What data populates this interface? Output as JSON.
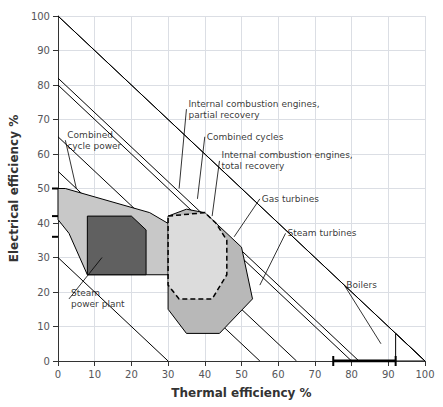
{
  "chart_data": {
    "type": "polygon",
    "xlabel": "Thermal efficiency %",
    "ylabel": "Electrical efficiency %",
    "xlim": [
      0,
      100
    ],
    "ylim": [
      0,
      100
    ],
    "xticks": [
      0,
      10,
      20,
      30,
      40,
      50,
      60,
      70,
      80,
      90,
      100
    ],
    "yticks": [
      0,
      10,
      20,
      30,
      40,
      50,
      60,
      70,
      80,
      90,
      100
    ],
    "grid": true,
    "lines": [
      {
        "points": [
          [
            0,
            100
          ],
          [
            100,
            0
          ]
        ]
      },
      {
        "points": [
          [
            30,
            0
          ],
          [
            0,
            30
          ]
        ]
      },
      {
        "points": [
          [
            55,
            0
          ],
          [
            0,
            55
          ]
        ]
      },
      {
        "points": [
          [
            65,
            0
          ],
          [
            0,
            65
          ]
        ]
      },
      {
        "points": [
          [
            80,
            0
          ],
          [
            0,
            80
          ]
        ]
      },
      {
        "points": [
          [
            82,
            0
          ],
          [
            0,
            82
          ]
        ]
      },
      {
        "points": [
          [
            100,
            0
          ],
          [
            0,
            100
          ]
        ]
      },
      {
        "points": [
          [
            75,
            0
          ],
          [
            92,
            0
          ]
        ],
        "line_style": "thick",
        "marker": "bar"
      }
    ],
    "shapes": [
      {
        "points": [
          [
            0,
            50
          ],
          [
            2,
            50
          ],
          [
            25,
            43
          ],
          [
            33,
            38
          ],
          [
            33,
            25
          ],
          [
            8,
            25
          ],
          [
            3,
            37
          ],
          [
            0,
            41
          ]
        ],
        "color": "#c8c8c8"
      },
      {
        "points": [
          [
            8,
            42
          ],
          [
            20,
            42
          ],
          [
            24,
            38
          ],
          [
            24,
            25
          ],
          [
            8,
            25
          ]
        ],
        "color": "#606060"
      },
      {
        "points": [
          [
            30,
            42
          ],
          [
            35,
            44
          ],
          [
            40,
            43
          ],
          [
            43,
            40
          ],
          [
            50,
            33
          ],
          [
            53,
            18
          ],
          [
            44,
            8
          ],
          [
            35,
            8
          ],
          [
            30,
            15
          ],
          [
            30,
            35
          ]
        ],
        "color": "#b8b8b8"
      },
      {
        "points": [
          [
            30,
            42
          ],
          [
            40,
            43
          ],
          [
            43,
            40
          ],
          [
            46,
            35
          ],
          [
            46,
            25
          ],
          [
            42,
            18
          ],
          [
            33,
            18
          ],
          [
            30,
            22
          ]
        ],
        "color": "#ffffff",
        "line_style": "dashed"
      },
      {
        "points": [
          [
            92,
            0
          ],
          [
            100,
            0
          ],
          [
            92,
            8
          ]
        ],
        "color": "none"
      }
    ],
    "annotations": [
      {
        "text": "Internal combustion engines,\npartial recovery",
        "xytext": [
          35,
          73
        ],
        "xy": [
          33,
          50
        ]
      },
      {
        "text": "Combined cycles",
        "xytext": [
          40,
          65
        ],
        "xy": [
          38,
          47
        ]
      },
      {
        "text": "Internal combustion engines,\ntotal recovery",
        "xytext": [
          44,
          58
        ],
        "xy": [
          42,
          42
        ]
      },
      {
        "text": "Gas turbines",
        "xytext": [
          55,
          47
        ],
        "xy": [
          48,
          36
        ]
      },
      {
        "text": "Steam turbines",
        "xytext": [
          62,
          37
        ],
        "xy": [
          55,
          22
        ]
      },
      {
        "text": "Boilers",
        "xytext": [
          78,
          22
        ],
        "xy": [
          88,
          5
        ]
      },
      {
        "text": "Combined\ncycle power",
        "xytext": [
          2,
          64
        ],
        "xy": [
          5,
          50
        ]
      },
      {
        "text": "Steam\npower plant",
        "xytext": [
          3,
          18
        ],
        "xy": [
          12,
          30
        ]
      }
    ],
    "yaxis_marks": [
      50,
      42,
      36
    ]
  }
}
